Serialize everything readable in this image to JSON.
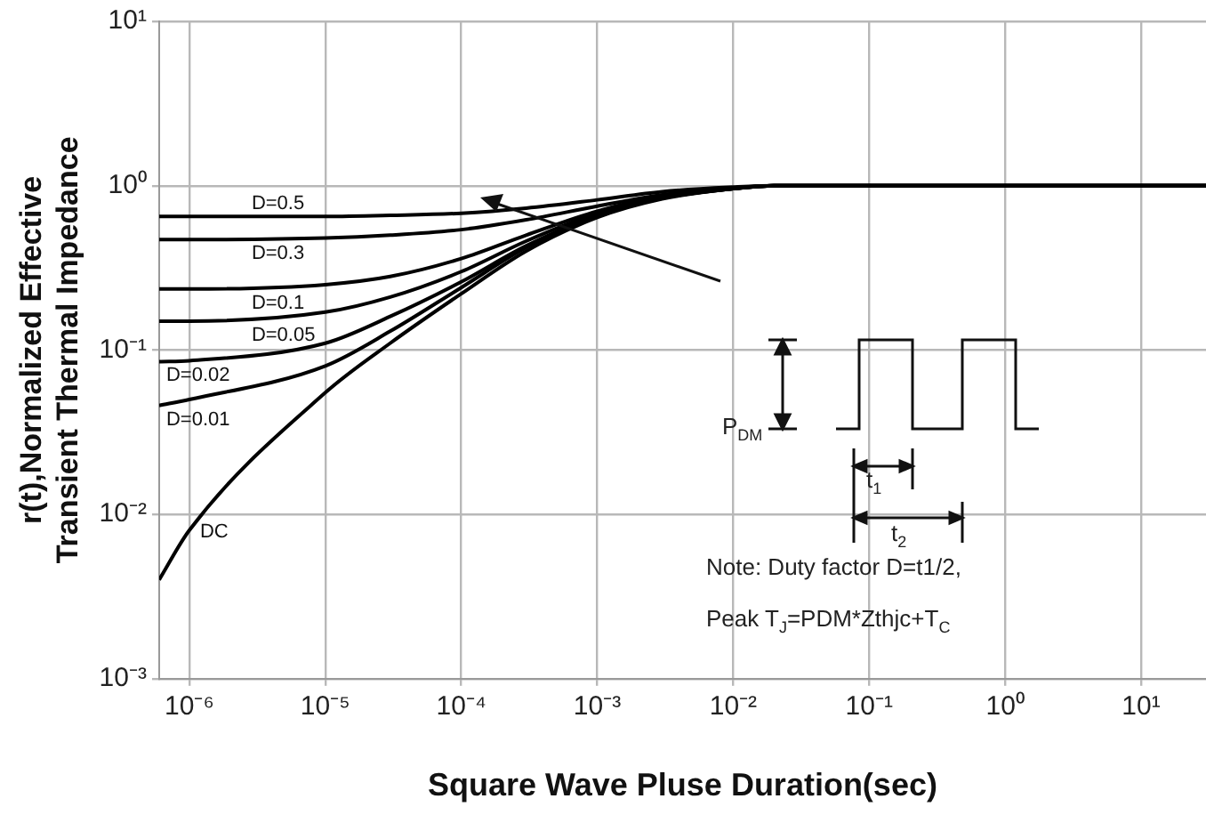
{
  "chart_data": {
    "type": "line",
    "xlabel": "Square Wave Pluse Duration(sec)",
    "ylabel": "r(t),Normalized Effective Transient Thermal Impedance",
    "x": [
      6e-07,
      1e-06,
      1e-05,
      3e-05,
      0.0001,
      0.0003,
      0.001,
      0.003,
      0.01,
      0.02,
      30
    ],
    "series": [
      {
        "name": "D=0.5",
        "color": "#000000",
        "values": [
          0.65,
          0.65,
          0.65,
          0.66,
          0.68,
          0.73,
          0.82,
          0.92,
          0.98,
          1,
          1
        ]
      },
      {
        "name": "D=0.3",
        "color": "#000000",
        "values": [
          0.47,
          0.47,
          0.48,
          0.5,
          0.54,
          0.62,
          0.75,
          0.88,
          0.97,
          1,
          1
        ]
      },
      {
        "name": "D=0.1",
        "color": "#000000",
        "values": [
          0.235,
          0.235,
          0.25,
          0.28,
          0.36,
          0.5,
          0.7,
          0.86,
          0.96,
          1,
          1
        ]
      },
      {
        "name": "D=0.05",
        "color": "#000000",
        "values": [
          0.15,
          0.15,
          0.17,
          0.21,
          0.3,
          0.46,
          0.68,
          0.85,
          0.96,
          1,
          1
        ]
      },
      {
        "name": "D=0.02",
        "color": "#000000",
        "values": [
          0.085,
          0.086,
          0.11,
          0.16,
          0.26,
          0.43,
          0.66,
          0.84,
          0.96,
          1,
          1
        ]
      },
      {
        "name": "D=0.01",
        "color": "#000000",
        "values": [
          0.046,
          0.05,
          0.08,
          0.13,
          0.24,
          0.42,
          0.65,
          0.84,
          0.96,
          1,
          1
        ]
      },
      {
        "name": "DC",
        "color": "#000000",
        "values": [
          0.004,
          0.008,
          0.055,
          0.11,
          0.22,
          0.4,
          0.64,
          0.83,
          0.96,
          1,
          1
        ]
      }
    ],
    "xlim": [
      6e-07,
      30
    ],
    "ylim": [
      0.001,
      10
    ],
    "xticks": [
      {
        "value": 1e-06,
        "label": "10⁻⁶"
      },
      {
        "value": 1e-05,
        "label": "10⁻⁵"
      },
      {
        "value": 0.0001,
        "label": "10⁻⁴"
      },
      {
        "value": 0.001,
        "label": "10⁻³"
      },
      {
        "value": 0.01,
        "label": "10⁻²"
      },
      {
        "value": 0.1,
        "label": "10⁻¹"
      },
      {
        "value": 1,
        "label": "10⁰"
      },
      {
        "value": 10,
        "label": "10¹"
      }
    ],
    "yticks": [
      {
        "value": 0.001,
        "label": "10⁻³"
      },
      {
        "value": 0.01,
        "label": "10⁻²"
      },
      {
        "value": 0.1,
        "label": "10⁻¹"
      },
      {
        "value": 1,
        "label": "10⁰"
      },
      {
        "value": 10,
        "label": "10¹"
      }
    ],
    "log": "xy",
    "grid": true,
    "legend": false,
    "marker": "none",
    "line_style": "solid",
    "annotations": [
      "P$_{DM}$",
      "t$_{1}$",
      "t$_{2}$",
      "Note: Duty factor D=t1/2,",
      "Peak T$_{J}$=PDM*Zthjc+T$_{C}$"
    ]
  }
}
